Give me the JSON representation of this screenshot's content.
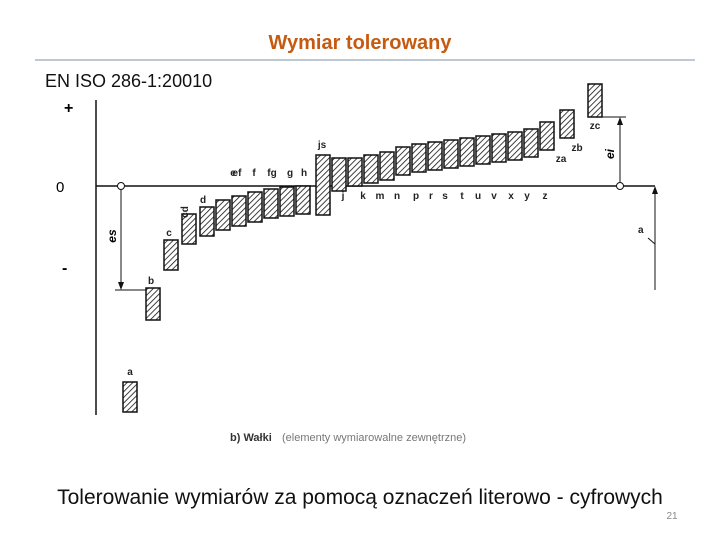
{
  "title": "Wymiar tolerowany",
  "subtitle": "EN ISO 286-1:20010",
  "diagram": {
    "axis_plus": "+",
    "axis_zero": "0",
    "axis_minus": "-",
    "es_label": "es",
    "ei_label": "ei",
    "a_label": "a",
    "zones": [
      "a",
      "b",
      "c",
      "cd",
      "d",
      "e",
      "ef",
      "f",
      "fg",
      "g",
      "h",
      "js",
      "j",
      "k",
      "m",
      "n",
      "p",
      "r",
      "s",
      "t",
      "u",
      "v",
      "x",
      "y",
      "z",
      "za",
      "zb",
      "zc"
    ],
    "caption_bold": "b) Wałki",
    "caption_rest": "(elementy wymiarowalne zewnętrzne)"
  },
  "footer": "Tolerowanie wymiarów za pomocą oznaczeń literowo - cyfrowych",
  "page_number": "21"
}
